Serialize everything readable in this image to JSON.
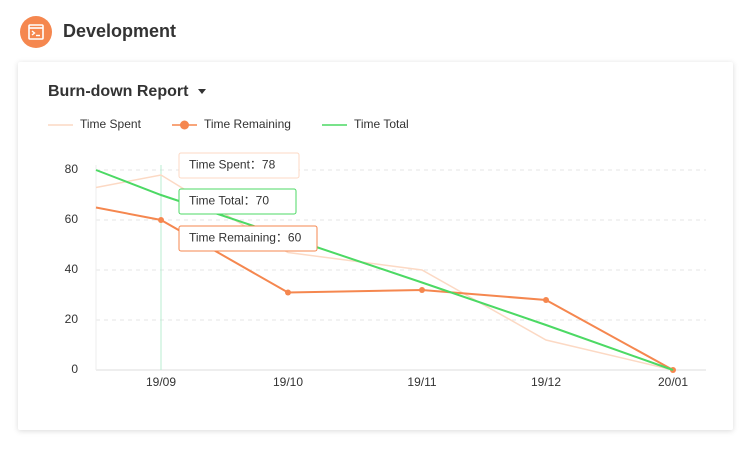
{
  "header": {
    "title": "Development"
  },
  "card": {
    "title": "Burn-down Report"
  },
  "chart_data": {
    "type": "line",
    "categories": [
      null,
      "19/09",
      "19/10",
      "19/11",
      "19/12",
      "20/01"
    ],
    "series": [
      {
        "name": "Time Spent",
        "color": "#fcd9c4",
        "values": [
          73,
          78,
          47,
          40,
          12,
          0
        ]
      },
      {
        "name": "Time Remaining",
        "color": "#f5874f",
        "values": [
          65,
          60,
          31,
          32,
          28,
          0
        ]
      },
      {
        "name": "Time Total",
        "color": "#4cd964",
        "values": [
          80,
          70,
          53,
          35,
          18,
          0
        ]
      }
    ],
    "ylim": [
      0,
      80
    ],
    "yticks": [
      0,
      20,
      40,
      60,
      80
    ],
    "grid": true,
    "tooltip": [
      "Time Spent：78",
      "Time Total：70",
      "Time Remaining：60"
    ]
  }
}
